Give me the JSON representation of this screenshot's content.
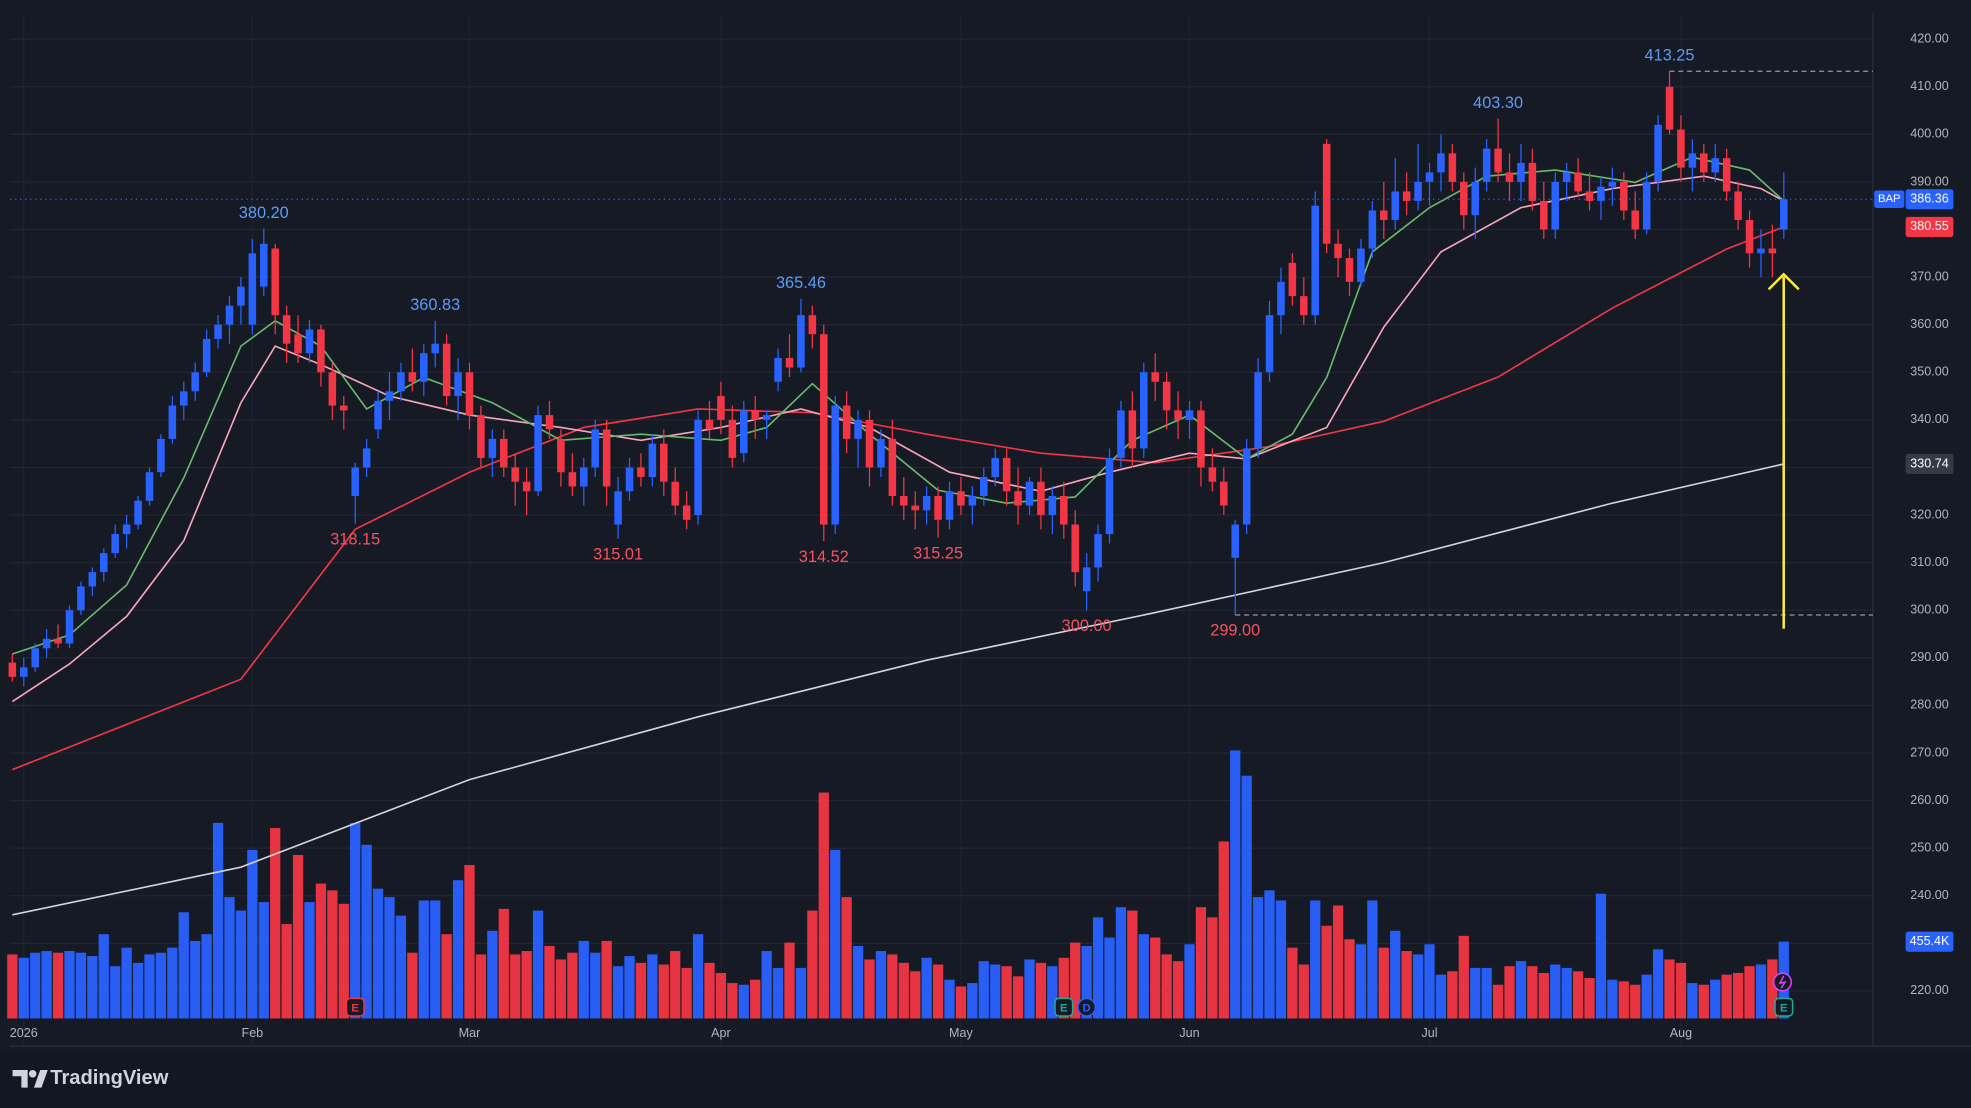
{
  "chart_data": {
    "type": "candlestick",
    "up_color": "#2962ff",
    "down_color": "#f23645",
    "xlim": [
      -0.2,
      162.8
    ],
    "ylim": [
      208.4,
      425
    ],
    "vlim": [
      0,
      1700
    ],
    "xticks": [
      {
        "value": 1,
        "label": "2026"
      },
      {
        "value": 21,
        "label": "Feb"
      },
      {
        "value": 40,
        "label": "Mar"
      },
      {
        "value": 62,
        "label": "Apr"
      },
      {
        "value": 83,
        "label": "May"
      },
      {
        "value": 103,
        "label": "Jun"
      },
      {
        "value": 124,
        "label": "Jul"
      },
      {
        "value": 146,
        "label": "Aug"
      }
    ],
    "yticks": [
      {
        "value": 220,
        "label": "220.00"
      },
      {
        "value": 230,
        "label": "230.00"
      },
      {
        "value": 240,
        "label": "240.00"
      },
      {
        "value": 250,
        "label": "250.00"
      },
      {
        "value": 260,
        "label": "260.00"
      },
      {
        "value": 270,
        "label": "270.00"
      },
      {
        "value": 280,
        "label": "280.00"
      },
      {
        "value": 290,
        "label": "290.00"
      },
      {
        "value": 300,
        "label": "300.00"
      },
      {
        "value": 310,
        "label": "310.00"
      },
      {
        "value": 320,
        "label": "320.00"
      },
      {
        "value": 330,
        "label": "330.00"
      },
      {
        "value": 340,
        "label": "340.00"
      },
      {
        "value": 350,
        "label": "350.00"
      },
      {
        "value": 360,
        "label": "360.00"
      },
      {
        "value": 370,
        "label": "370.00"
      },
      {
        "value": 380,
        "label": "380.00"
      },
      {
        "value": 390,
        "label": "390.00"
      },
      {
        "value": 400,
        "label": "400.00"
      },
      {
        "value": 410,
        "label": "410.00"
      },
      {
        "value": 420,
        "label": "420.00"
      }
    ],
    "grid": true,
    "ohlc": [
      [
        289,
        291,
        285,
        286
      ],
      [
        286,
        290,
        284,
        288
      ],
      [
        288,
        293,
        287,
        292
      ],
      [
        292,
        296,
        290,
        294
      ],
      [
        294,
        297,
        292,
        293
      ],
      [
        293,
        301,
        292,
        300
      ],
      [
        300,
        306,
        299,
        305
      ],
      [
        305,
        309,
        303,
        308
      ],
      [
        308,
        313,
        306,
        312
      ],
      [
        312,
        318,
        311,
        316
      ],
      [
        316,
        320,
        313,
        318
      ],
      [
        318,
        324,
        317,
        323
      ],
      [
        323,
        330,
        322,
        329
      ],
      [
        329,
        337,
        328,
        336
      ],
      [
        336,
        345,
        335,
        343
      ],
      [
        343,
        348,
        340,
        346
      ],
      [
        346,
        352,
        344,
        350
      ],
      [
        350,
        359,
        349,
        357
      ],
      [
        357,
        362,
        355,
        360
      ],
      [
        360,
        366,
        356,
        364
      ],
      [
        364,
        370,
        360,
        368
      ],
      [
        360,
        378,
        358,
        375
      ],
      [
        368,
        380.2,
        366,
        377
      ],
      [
        376,
        377,
        358,
        362
      ],
      [
        362,
        364,
        352,
        356
      ],
      [
        358,
        362,
        352,
        354
      ],
      [
        354,
        361,
        352,
        359
      ],
      [
        359,
        360,
        347,
        350
      ],
      [
        350,
        352,
        340,
        343
      ],
      [
        343,
        345,
        338,
        342
      ],
      [
        324,
        331,
        318.15,
        330
      ],
      [
        330,
        336,
        328,
        334
      ],
      [
        338,
        346,
        336,
        344
      ],
      [
        344,
        350,
        340,
        346
      ],
      [
        346,
        352,
        344,
        350
      ],
      [
        350,
        355,
        346,
        348
      ],
      [
        348,
        356,
        345,
        354
      ],
      [
        354,
        360.83,
        351,
        356
      ],
      [
        356,
        358,
        343,
        345
      ],
      [
        345,
        353,
        340,
        350
      ],
      [
        350,
        352,
        338,
        341
      ],
      [
        341,
        343,
        330,
        332
      ],
      [
        332,
        338,
        328,
        336
      ],
      [
        336,
        338,
        328,
        330
      ],
      [
        330,
        333,
        322,
        327
      ],
      [
        327,
        330,
        320,
        325
      ],
      [
        325,
        343,
        324,
        341
      ],
      [
        341,
        344,
        336,
        338
      ],
      [
        336,
        338,
        326,
        329
      ],
      [
        329,
        333,
        324,
        326
      ],
      [
        326,
        332,
        322,
        330
      ],
      [
        330,
        340,
        328,
        338
      ],
      [
        338,
        340,
        322,
        326
      ],
      [
        318,
        328,
        315.01,
        325
      ],
      [
        325,
        332,
        323,
        330
      ],
      [
        330,
        333,
        326,
        328
      ],
      [
        328,
        337,
        326,
        335
      ],
      [
        335,
        338,
        324,
        327
      ],
      [
        327,
        330,
        320,
        322
      ],
      [
        322,
        325,
        317,
        319
      ],
      [
        320,
        342,
        318,
        340
      ],
      [
        340,
        344,
        336,
        338
      ],
      [
        345,
        348,
        337,
        340
      ],
      [
        340,
        343,
        330,
        332
      ],
      [
        333,
        344,
        331,
        342
      ],
      [
        342,
        345,
        336,
        340
      ],
      [
        340,
        342,
        336,
        341
      ],
      [
        348,
        355,
        346,
        353
      ],
      [
        353,
        358,
        349,
        351
      ],
      [
        351,
        365.46,
        350,
        362
      ],
      [
        362,
        364,
        355,
        358
      ],
      [
        358,
        360,
        314.52,
        318
      ],
      [
        318,
        345,
        316,
        343
      ],
      [
        343,
        346,
        333,
        336
      ],
      [
        336,
        342,
        330,
        340
      ],
      [
        340,
        342,
        326,
        330
      ],
      [
        330,
        338,
        328,
        336
      ],
      [
        336,
        340,
        322,
        324
      ],
      [
        324,
        328,
        319,
        322
      ],
      [
        322,
        325,
        317,
        321
      ],
      [
        321,
        326,
        318,
        324
      ],
      [
        324,
        326,
        315.25,
        319
      ],
      [
        319,
        327,
        317,
        325
      ],
      [
        325,
        328,
        320,
        322
      ],
      [
        322,
        326,
        318,
        324
      ],
      [
        324,
        330,
        322,
        328
      ],
      [
        328,
        334,
        326,
        332
      ],
      [
        332,
        334,
        322,
        325
      ],
      [
        325,
        330,
        318,
        322
      ],
      [
        322,
        328,
        320,
        327
      ],
      [
        327,
        330,
        317,
        320
      ],
      [
        320,
        326,
        316,
        324
      ],
      [
        324,
        327,
        315,
        318
      ],
      [
        318,
        321,
        305,
        308
      ],
      [
        304,
        312,
        300,
        309
      ],
      [
        309,
        318,
        306,
        316
      ],
      [
        316,
        334,
        314,
        332
      ],
      [
        332,
        344,
        330,
        342
      ],
      [
        342,
        346,
        330,
        334
      ],
      [
        334,
        352,
        332,
        350
      ],
      [
        350,
        354,
        344,
        348
      ],
      [
        348,
        350,
        338,
        342
      ],
      [
        342,
        346,
        336,
        340
      ],
      [
        340,
        344,
        336,
        342
      ],
      [
        342,
        344,
        326,
        330
      ],
      [
        330,
        334,
        325,
        327
      ],
      [
        327,
        330,
        320,
        322
      ],
      [
        311,
        319,
        299,
        318
      ],
      [
        318,
        336,
        316,
        334
      ],
      [
        334,
        353,
        332,
        350
      ],
      [
        350,
        365,
        348,
        362
      ],
      [
        362,
        372,
        358,
        369
      ],
      [
        373,
        375,
        364,
        366
      ],
      [
        366,
        370,
        360,
        362
      ],
      [
        362,
        388,
        360,
        385
      ],
      [
        398,
        399,
        375,
        377
      ],
      [
        377,
        380,
        370,
        374
      ],
      [
        374,
        376,
        366,
        369
      ],
      [
        369,
        378,
        368,
        376
      ],
      [
        376,
        386,
        374,
        384
      ],
      [
        384,
        390,
        378,
        382
      ],
      [
        382,
        395,
        380,
        388
      ],
      [
        388,
        392,
        383,
        386
      ],
      [
        386,
        398,
        384,
        390
      ],
      [
        390,
        394,
        385,
        392
      ],
      [
        392,
        400,
        388,
        396
      ],
      [
        396,
        398,
        388,
        390
      ],
      [
        390,
        392,
        380,
        383
      ],
      [
        383,
        393,
        378,
        390
      ],
      [
        390,
        399,
        388,
        397
      ],
      [
        397,
        403.3,
        390,
        392
      ],
      [
        392,
        396,
        386,
        390
      ],
      [
        390,
        398,
        386,
        394
      ],
      [
        394,
        397,
        384,
        386
      ],
      [
        386,
        390,
        378,
        380
      ],
      [
        380,
        392,
        378,
        390
      ],
      [
        390,
        394,
        386,
        392
      ],
      [
        392,
        395,
        387,
        388
      ],
      [
        388,
        392,
        384,
        386
      ],
      [
        386,
        391,
        382,
        389
      ],
      [
        389,
        393,
        385,
        390
      ],
      [
        390,
        392,
        382,
        384
      ],
      [
        384,
        388,
        378,
        380
      ],
      [
        380,
        392,
        379,
        390
      ],
      [
        390,
        404,
        388,
        402
      ],
      [
        410,
        413.25,
        400,
        401
      ],
      [
        401,
        404,
        390,
        393
      ],
      [
        393,
        399,
        388,
        396
      ],
      [
        396,
        398,
        390,
        392
      ],
      [
        392,
        398,
        390,
        395
      ],
      [
        395,
        397,
        386,
        388
      ],
      [
        388,
        390,
        380,
        382
      ],
      [
        382,
        384,
        372,
        375
      ],
      [
        375,
        380,
        370,
        376
      ],
      [
        376,
        381,
        370,
        375
      ],
      [
        380,
        392,
        378,
        386.36
      ]
    ],
    "volume": [
      380,
      360,
      390,
      400,
      390,
      400,
      390,
      370,
      500,
      310,
      420,
      330,
      380,
      390,
      420,
      630,
      460,
      500,
      1160,
      720,
      640,
      1000,
      690,
      1130,
      560,
      970,
      690,
      800,
      760,
      680,
      1160,
      1030,
      770,
      720,
      610,
      390,
      700,
      700,
      500,
      820,
      910,
      380,
      520,
      650,
      380,
      400,
      640,
      430,
      350,
      390,
      460,
      390,
      460,
      310,
      370,
      330,
      380,
      320,
      400,
      300,
      500,
      330,
      270,
      210,
      200,
      230,
      400,
      300,
      450,
      300,
      640,
      1340,
      1000,
      720,
      430,
      350,
      400,
      380,
      330,
      280,
      360,
      320,
      230,
      190,
      210,
      340,
      320,
      310,
      250,
      350,
      330,
      310,
      360,
      450,
      430,
      600,
      480,
      660,
      640,
      500,
      480,
      380,
      340,
      440,
      660,
      600,
      1050,
      1590,
      1440,
      720,
      760,
      700,
      420,
      320,
      700,
      550,
      670,
      470,
      440,
      700,
      420,
      520,
      400,
      380,
      440,
      260,
      280,
      490,
      300,
      300,
      200,
      310,
      340,
      310,
      270,
      320,
      300,
      280,
      240,
      740,
      230,
      220,
      200,
      260,
      410,
      350,
      330,
      210,
      200,
      230,
      260,
      270,
      310,
      320,
      350,
      455.4
    ],
    "volume_badge": {
      "value": 455.4,
      "label": "455.4K",
      "color": "#2962ff"
    },
    "ma": [
      {
        "color": "#d1d4dc",
        "x": [
          0,
          20,
          40,
          60,
          80,
          100,
          120,
          140,
          155
        ],
        "values": [
          236,
          246,
          264.4,
          277.6,
          289.5,
          299.5,
          310,
          322.5,
          330.74
        ]
      },
      {
        "color": "#f23645",
        "x": [
          0,
          20,
          30,
          40,
          50,
          60,
          70,
          80,
          90,
          100,
          110,
          120,
          130,
          140,
          150,
          155
        ],
        "values": [
          266.5,
          285.5,
          317,
          329,
          338.4,
          342.3,
          341.5,
          337,
          333,
          331,
          334.4,
          339.7,
          349,
          363.5,
          375.9,
          380.55
        ]
      },
      {
        "color": "#f8a5b8",
        "x": [
          0,
          5,
          10,
          15,
          20,
          23,
          27,
          33,
          40,
          48,
          55,
          62,
          69,
          75,
          82,
          90,
          96,
          103,
          108,
          115,
          120,
          125,
          132,
          140,
          148,
          153,
          155
        ],
        "values": [
          280.8,
          288.7,
          298.7,
          314.6,
          343.6,
          355.5,
          351.6,
          345,
          341,
          338.4,
          335.7,
          338.4,
          342.3,
          338.4,
          329,
          325,
          329,
          333,
          331.8,
          338.4,
          359.5,
          375.3,
          384.6,
          388.6,
          391.2,
          388.6,
          386
        ]
      },
      {
        "color": "#66bb6a",
        "x": [
          0,
          5,
          10,
          15,
          20,
          23,
          27,
          31,
          36,
          42,
          48,
          55,
          62,
          66,
          70,
          75,
          81,
          87,
          93,
          98,
          103,
          108,
          112,
          115,
          119,
          124,
          129,
          135,
          142,
          147,
          152,
          155
        ],
        "values": [
          290.8,
          294.8,
          305.3,
          327.8,
          355.5,
          360.8,
          355.5,
          342.3,
          348.9,
          343.6,
          335.7,
          337,
          335.7,
          338.4,
          347.6,
          337,
          325.2,
          322.5,
          323.8,
          335.7,
          341,
          331.8,
          337,
          348.9,
          375.3,
          384.6,
          391.2,
          392.5,
          389.9,
          395.2,
          392.5,
          386
        ]
      }
    ],
    "annotations": [
      {
        "index": 22,
        "kind": "high",
        "value": 380.2,
        "label": "380.20"
      },
      {
        "index": 37,
        "kind": "high",
        "value": 360.83,
        "label": "360.83"
      },
      {
        "index": 69,
        "kind": "high",
        "value": 365.46,
        "label": "365.46"
      },
      {
        "index": 130,
        "kind": "high",
        "value": 403.3,
        "label": "403.30"
      },
      {
        "index": 145,
        "kind": "high",
        "value": 413.25,
        "label": "413.25",
        "dashed": true
      },
      {
        "index": 30,
        "kind": "low",
        "value": 318.15,
        "label": "318.15"
      },
      {
        "index": 53,
        "kind": "low",
        "value": 315.01,
        "label": "315.01"
      },
      {
        "index": 71,
        "kind": "low",
        "value": 314.52,
        "label": "314.52"
      },
      {
        "index": 81,
        "kind": "low",
        "value": 315.25,
        "label": "315.25"
      },
      {
        "index": 94,
        "kind": "low",
        "value": 300,
        "label": "300.00"
      },
      {
        "index": 107,
        "kind": "low",
        "value": 299,
        "label": "299.00",
        "dashed": true
      }
    ],
    "price_labels": [
      {
        "value": 386.36,
        "label": "386.36",
        "symbol": "BAP",
        "color": "#2962ff"
      },
      {
        "value": 380.55,
        "label": "380.55",
        "color": "#f23645"
      },
      {
        "value": 330.74,
        "label": "330.74",
        "color": "#363a45"
      }
    ],
    "events": [
      {
        "index": 30,
        "label": "E",
        "color": "#f23645"
      },
      {
        "index": 92,
        "label": "E",
        "color": "#22ab94"
      },
      {
        "index": 94,
        "label": "D",
        "color": "#2962ff"
      },
      {
        "index": 155,
        "label": "E",
        "color": "#22ab94"
      }
    ],
    "brand": "TradingView"
  }
}
